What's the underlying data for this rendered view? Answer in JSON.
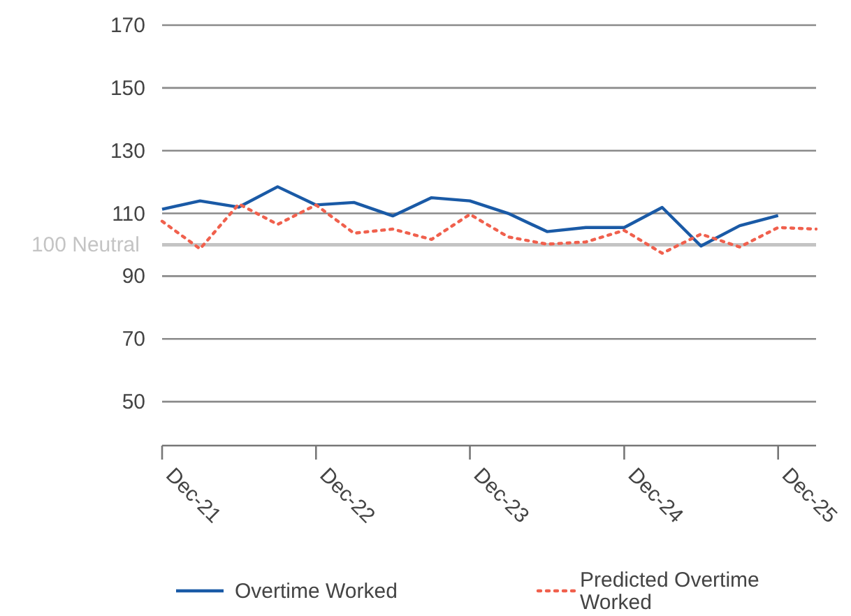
{
  "chart_data": {
    "type": "line",
    "x": [
      "2021-12",
      "2022-03",
      "2022-06",
      "2022-09",
      "2022-12",
      "2023-03",
      "2023-06",
      "2023-09",
      "2023-12",
      "2024-03",
      "2024-06",
      "2024-09",
      "2024-12",
      "2025-03",
      "2025-06",
      "2025-09",
      "2025-12",
      "2026-03"
    ],
    "series": [
      {
        "name": "Overtime Worked",
        "color": "#1a5aa6",
        "line_style": "solid",
        "values": [
          111.3,
          114,
          112,
          118.5,
          112.7,
          113.5,
          109.2,
          115,
          114,
          110,
          104.2,
          105.5,
          105.5,
          111.9,
          99.6,
          106.1,
          109.3,
          null
        ]
      },
      {
        "name": "Predicted Overtime Worked",
        "color": "#f0604d",
        "line_style": "dotted",
        "values": [
          107.5,
          98.7,
          113,
          106.5,
          112.7,
          103.7,
          105,
          101.7,
          109.7,
          102.5,
          100.2,
          100.9,
          104.6,
          97.3,
          103.4,
          99.3,
          105.5,
          105
        ]
      }
    ],
    "xlim": [
      "2021-12",
      "2026-03"
    ],
    "xticks": [
      {
        "value": "2021-12",
        "label": "Dec-21"
      },
      {
        "value": "2022-12",
        "label": "Dec-22"
      },
      {
        "value": "2023-12",
        "label": "Dec-23"
      },
      {
        "value": "2024-12",
        "label": "Dec-24"
      },
      {
        "value": "2025-12",
        "label": "Dec-25"
      }
    ],
    "ylim": [
      36,
      170
    ],
    "yticks": [
      50,
      70,
      90,
      110,
      130,
      150,
      170
    ],
    "grid": "y",
    "legend": "bottom",
    "marker": "none",
    "ref_lines": [
      {
        "axis": "y",
        "value": 100,
        "label": "100 Neutral",
        "color": "#c4c4c4"
      }
    ]
  }
}
